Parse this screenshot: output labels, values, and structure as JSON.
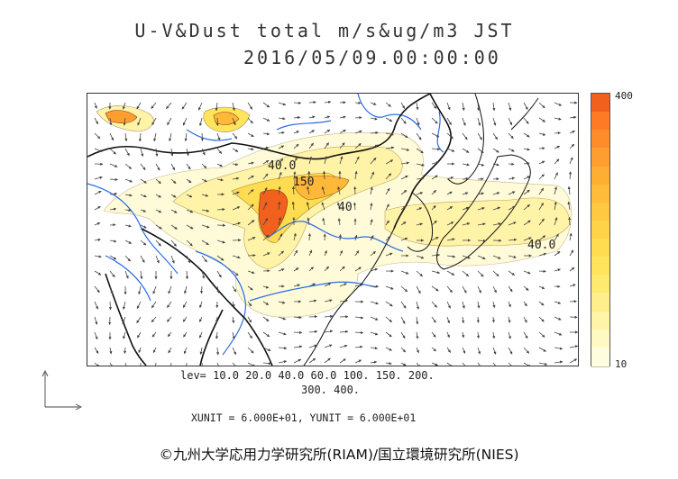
{
  "title": "U-V&Dust total m/s&ug/m3 JST",
  "datetime": "2016/05/09.00:00:00",
  "colorbar": {
    "max_label": "400",
    "min_label": "10",
    "colors": [
      "#fffde0",
      "#fff9c4",
      "#fff4a8",
      "#ffef8c",
      "#ffea70",
      "#ffe45c",
      "#ffdc50",
      "#ffd348",
      "#ffc840",
      "#ffbc3a",
      "#ffae34",
      "#ff9e30",
      "#ff8c2a",
      "#ff7a24",
      "#f2601e"
    ]
  },
  "levels": {
    "line1": "lev= 10.0 20.0 40.0 60.0 100. 150. 200.",
    "line2": "300. 400."
  },
  "units": "XUNIT = 6.000E+01, YUNIT = 6.000E+01",
  "contour_labels": [
    "40.0",
    "150",
    "40",
    "40.0"
  ],
  "copyright": "©九州大学応用力学研究所(RIAM)/国立環境研究所(NIES)"
}
